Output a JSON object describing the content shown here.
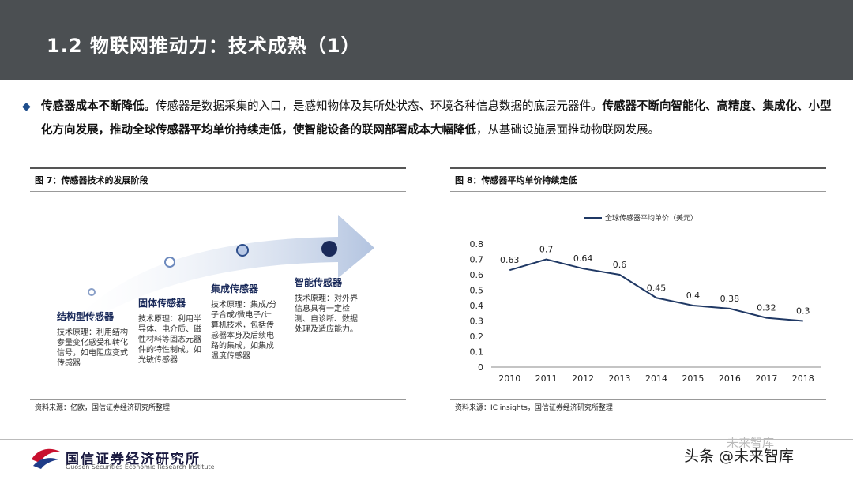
{
  "header": {
    "title": "1.2 物联网推动力：技术成熟（1）"
  },
  "intro": {
    "bold1": "传感器成本不断降低。",
    "normal1": "传感器是数据采集的入口，是感知物体及其所处状态、环境各种信息数据的底层元器件。",
    "bold2": "传感器不断向智能化、高精度、集成化、小型化方向发展，推动全球传感器平均单价持续走低，使智能设备的联网部署成本大幅降低",
    "normal2": "，从基础设施层面推动物联网发展。"
  },
  "fig7": {
    "title": "图 7：传感器技术的发展阶段",
    "source": "资料来源：亿欧，国信证券经济研究所整理",
    "stages": [
      {
        "name": "结构型传感器",
        "desc": "技术原理：利用结构参量变化感受和转化信号，如电阻应变式传感器"
      },
      {
        "name": "固体传感器",
        "desc": "技术原理：利用半导体、电介质、磁性材料等固态元器件的特性制成，如光敏传感器"
      },
      {
        "name": "集成传感器",
        "desc": "技术原理：集成/分子合成/微电子/计算机技术，包括传感器本身及后续电路的集成，如集成温度传感器"
      },
      {
        "name": "智能传感器",
        "desc": "技术原理：对外界信息具有一定检测、自诊断、数据处理及适应能力。"
      }
    ]
  },
  "fig8": {
    "title": "图 8：传感器平均单价持续走低",
    "source": "资料来源：IC insights，国信证券经济研究所整理"
  },
  "chart_data": {
    "type": "line",
    "title": "",
    "x": [
      "2010",
      "2011",
      "2012",
      "2013",
      "2014",
      "2015",
      "2016",
      "2017",
      "2018"
    ],
    "series": [
      {
        "name": "全球传感器平均单价（美元）",
        "values": [
          0.63,
          0.7,
          0.64,
          0.6,
          0.45,
          0.4,
          0.38,
          0.32,
          0.3
        ]
      }
    ],
    "data_labels": [
      "0.63",
      "0.7",
      "0.64",
      "0.6",
      "0.45",
      "0.4",
      "0.38",
      "0.32",
      "0.3"
    ],
    "yticks": [
      "0",
      "0.1",
      "0.2",
      "0.3",
      "0.4",
      "0.5",
      "0.6",
      "0.7",
      "0.8"
    ],
    "ylim": [
      0,
      0.8
    ],
    "legend": "top-left",
    "color": "#1f3864"
  },
  "footer": {
    "org": "国信证券经济研究所",
    "org_en": "Guosen Securities Economic Research Institute",
    "watermark": "头条 @未来智库",
    "watermark2": "未来智库"
  }
}
